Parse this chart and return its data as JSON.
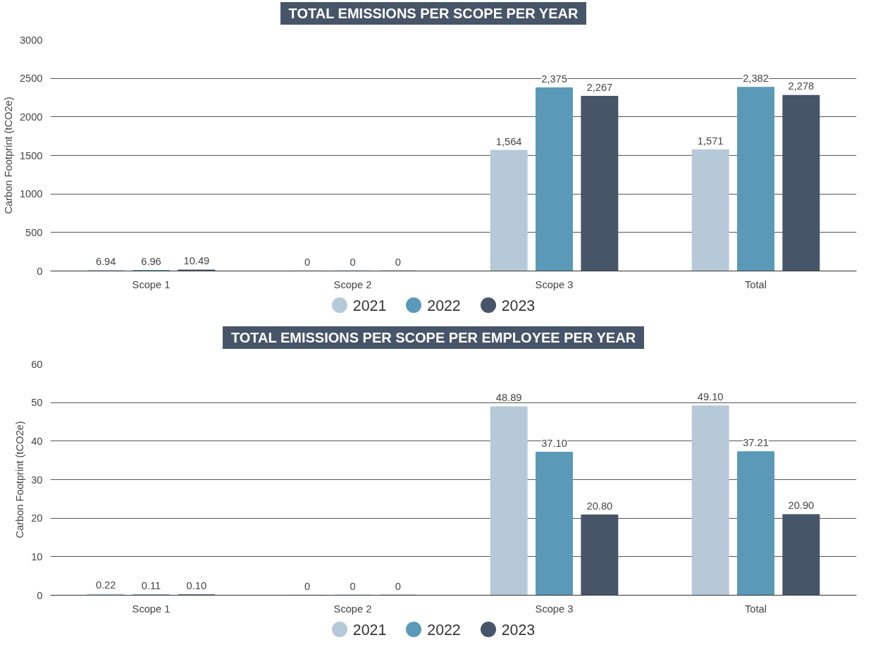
{
  "chart_data": [
    {
      "type": "bar",
      "title": "TOTAL EMISSIONS PER SCOPE PER YEAR",
      "ylabel": "Carbon Footprint (tCO2e)",
      "categories": [
        "Scope 1",
        "Scope 2",
        "Scope 3",
        "Total"
      ],
      "ylim": [
        0,
        3000
      ],
      "yticks": [
        0,
        500,
        1000,
        1500,
        2000,
        2500,
        3000
      ],
      "grid": "y",
      "legend": "bottom",
      "series": [
        {
          "name": "2021",
          "color": "#b5c9d9",
          "values": [
            6.94,
            0,
            1564,
            1571
          ],
          "value_labels": [
            "6.94",
            "0",
            "1,564",
            "1,571"
          ]
        },
        {
          "name": "2022",
          "color": "#5a9ab8",
          "values": [
            6.96,
            0,
            2375,
            2382
          ],
          "value_labels": [
            "6.96",
            "0",
            "2,375",
            "2,382"
          ]
        },
        {
          "name": "2023",
          "color": "#475569",
          "values": [
            10.49,
            0,
            2267,
            2278
          ],
          "value_labels": [
            "10.49",
            "0",
            "2,267",
            "2,278"
          ]
        }
      ]
    },
    {
      "type": "bar",
      "title": "TOTAL EMISSIONS PER SCOPE PER EMPLOYEE PER YEAR",
      "ylabel": "Carbon Footprint (tCO2e)",
      "categories": [
        "Scope 1",
        "Scope 2",
        "Scope 3",
        "Total"
      ],
      "ylim": [
        0,
        60
      ],
      "yticks": [
        0,
        10,
        20,
        30,
        40,
        50,
        60
      ],
      "grid": "y",
      "legend": "bottom",
      "series": [
        {
          "name": "2021",
          "color": "#b5c9d9",
          "values": [
            0.22,
            0,
            48.89,
            49.1
          ],
          "value_labels": [
            "0.22",
            "0",
            "48.89",
            "49.10"
          ]
        },
        {
          "name": "2022",
          "color": "#5a9ab8",
          "values": [
            0.11,
            0,
            37.1,
            37.21
          ],
          "value_labels": [
            "0.11",
            "0",
            "37.10",
            "37.21"
          ]
        },
        {
          "name": "2023",
          "color": "#475569",
          "values": [
            0.1,
            0,
            20.8,
            20.9
          ],
          "value_labels": [
            "0.10",
            "0",
            "20.80",
            "20.90"
          ]
        }
      ]
    }
  ]
}
